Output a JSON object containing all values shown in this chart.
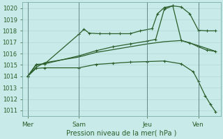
{
  "title": "Pression niveau de la mer( hPa )",
  "bg_color": "#c8eae8",
  "grid_color": "#b0d8d5",
  "line_color": "#2a5e2a",
  "ylim_min": 1010.5,
  "ylim_max": 1020.5,
  "yticks": [
    1011,
    1012,
    1013,
    1014,
    1015,
    1016,
    1017,
    1018,
    1019,
    1020
  ],
  "xtick_labels": [
    "Mer",
    "Sam",
    "Jeu",
    "Ven"
  ],
  "xtick_positions": [
    0,
    3,
    7,
    10
  ],
  "xlim_min": -0.3,
  "xlim_max": 11.3,
  "vlines": [
    0,
    3,
    7,
    10
  ],
  "s1x": [
    0,
    0.5,
    1.0,
    3.0,
    3.3,
    3.6,
    4.2,
    4.8,
    5.4,
    6.0,
    6.6,
    7.3,
    7.6,
    8.0,
    8.5,
    9.0,
    9.5,
    10.0,
    10.5,
    11.0
  ],
  "s1y": [
    1014.0,
    1015.0,
    1015.1,
    1017.7,
    1018.15,
    1017.8,
    1017.75,
    1017.75,
    1017.75,
    1017.75,
    1018.0,
    1018.2,
    1019.5,
    1020.05,
    1020.2,
    1020.1,
    1019.5,
    1018.05,
    1018.0,
    1018.0
  ],
  "s2x": [
    0,
    0.5,
    1.0,
    3.0,
    4.0,
    5.0,
    6.0,
    7.0,
    7.5,
    8.0,
    8.5,
    9.0,
    9.5,
    10.0,
    10.5,
    11.0
  ],
  "s2y": [
    1014.0,
    1015.05,
    1015.1,
    1015.8,
    1016.25,
    1016.6,
    1016.85,
    1017.1,
    1017.25,
    1019.9,
    1020.2,
    1017.15,
    1016.95,
    1016.6,
    1016.3,
    1016.2
  ],
  "s3x": [
    0,
    0.5,
    1.0,
    3.0,
    4.0,
    5.0,
    6.0,
    7.0,
    8.0,
    9.0,
    10.0,
    10.5,
    11.0
  ],
  "s3y": [
    1014.0,
    1014.8,
    1015.2,
    1015.7,
    1016.1,
    1016.35,
    1016.6,
    1016.85,
    1017.05,
    1017.15,
    1016.7,
    1016.45,
    1016.2
  ],
  "s4x": [
    0,
    0.5,
    1.0,
    3.0,
    4.0,
    5.0,
    6.0,
    7.0,
    8.0,
    9.0,
    9.7,
    10.0,
    10.4,
    10.7,
    11.0
  ],
  "s4y": [
    1014.0,
    1014.7,
    1014.75,
    1014.75,
    1015.05,
    1015.15,
    1015.25,
    1015.3,
    1015.35,
    1015.1,
    1014.4,
    1013.55,
    1012.3,
    1011.55,
    1010.9
  ]
}
